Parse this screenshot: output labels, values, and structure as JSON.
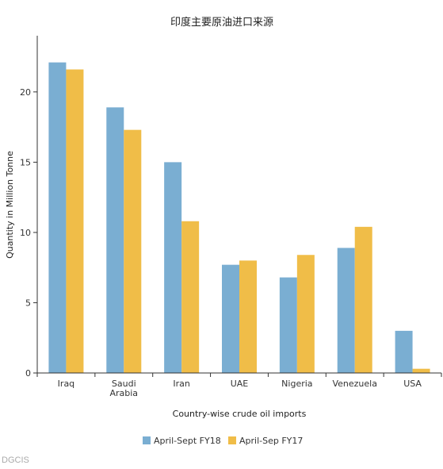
{
  "chart_data": {
    "type": "bar",
    "title": "印度主要原油进口来源",
    "xlabel": "Country-wise crude oil imports",
    "ylabel": "Quantity in Million Tonne",
    "categories": [
      [
        "Iraq"
      ],
      [
        "Saudi",
        "Arabia"
      ],
      [
        "Iran"
      ],
      [
        "UAE"
      ],
      [
        "Nigeria"
      ],
      [
        "Venezuela"
      ],
      [
        "USA"
      ]
    ],
    "series": [
      {
        "name": "April-Sept FY18",
        "color": "#7aaed2",
        "values": [
          22.1,
          18.9,
          15.0,
          7.7,
          6.8,
          8.9,
          3.0
        ]
      },
      {
        "name": "April-Sep FY17",
        "color": "#f0bd48",
        "values": [
          21.6,
          17.3,
          10.8,
          8.0,
          8.4,
          10.4,
          0.3
        ]
      }
    ],
    "ylim": [
      0,
      24
    ],
    "yticks": [
      0,
      5,
      10,
      15,
      20
    ],
    "grid": false,
    "legend": "bottom-center"
  },
  "source_label": "DGCIS"
}
